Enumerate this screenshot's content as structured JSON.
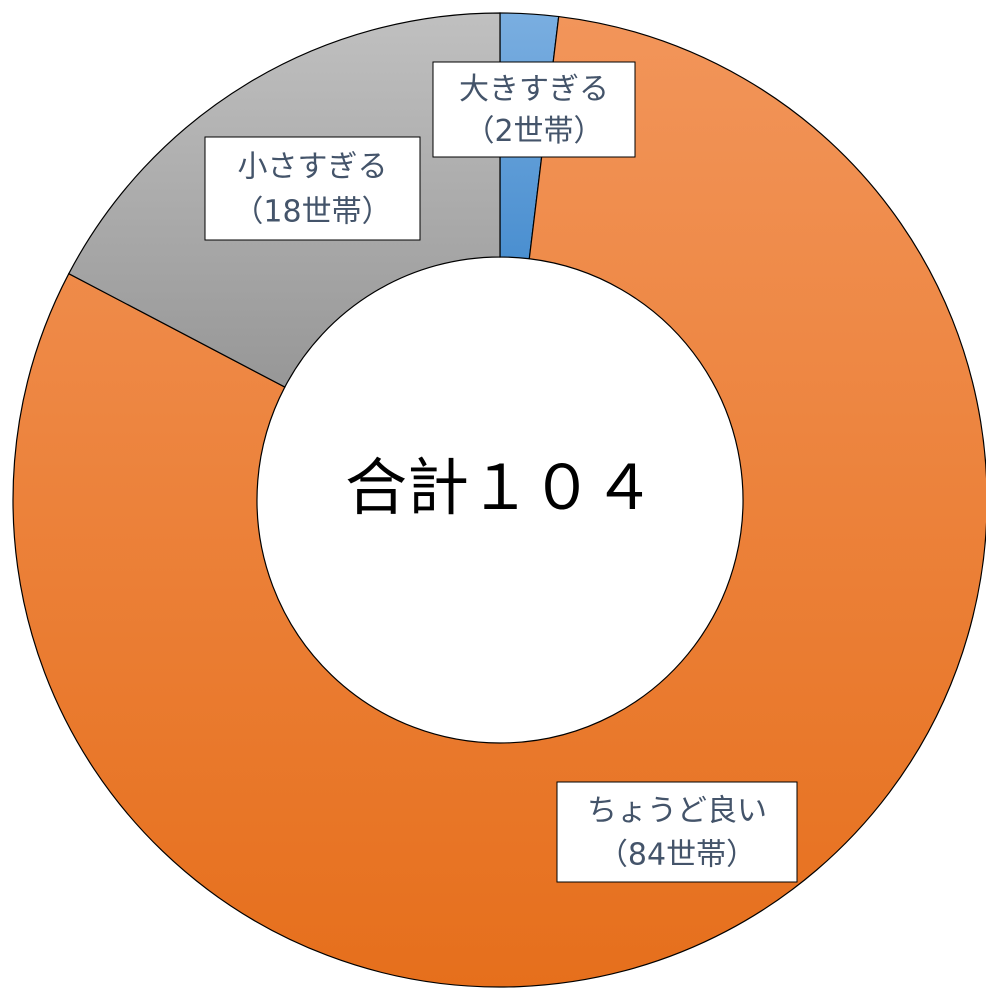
{
  "chart_data": {
    "type": "donut",
    "categories": [
      "大きすぎる",
      "ちょうど良い",
      "小さすぎる"
    ],
    "values": [
      2,
      84,
      18
    ],
    "value_labels": [
      "（2世帯）",
      "（84世帯）",
      "（18世帯）"
    ],
    "colors": [
      "#5b9bd5",
      "#ed7d31",
      "#a5a5a5"
    ],
    "center_label": "合計１０４"
  }
}
